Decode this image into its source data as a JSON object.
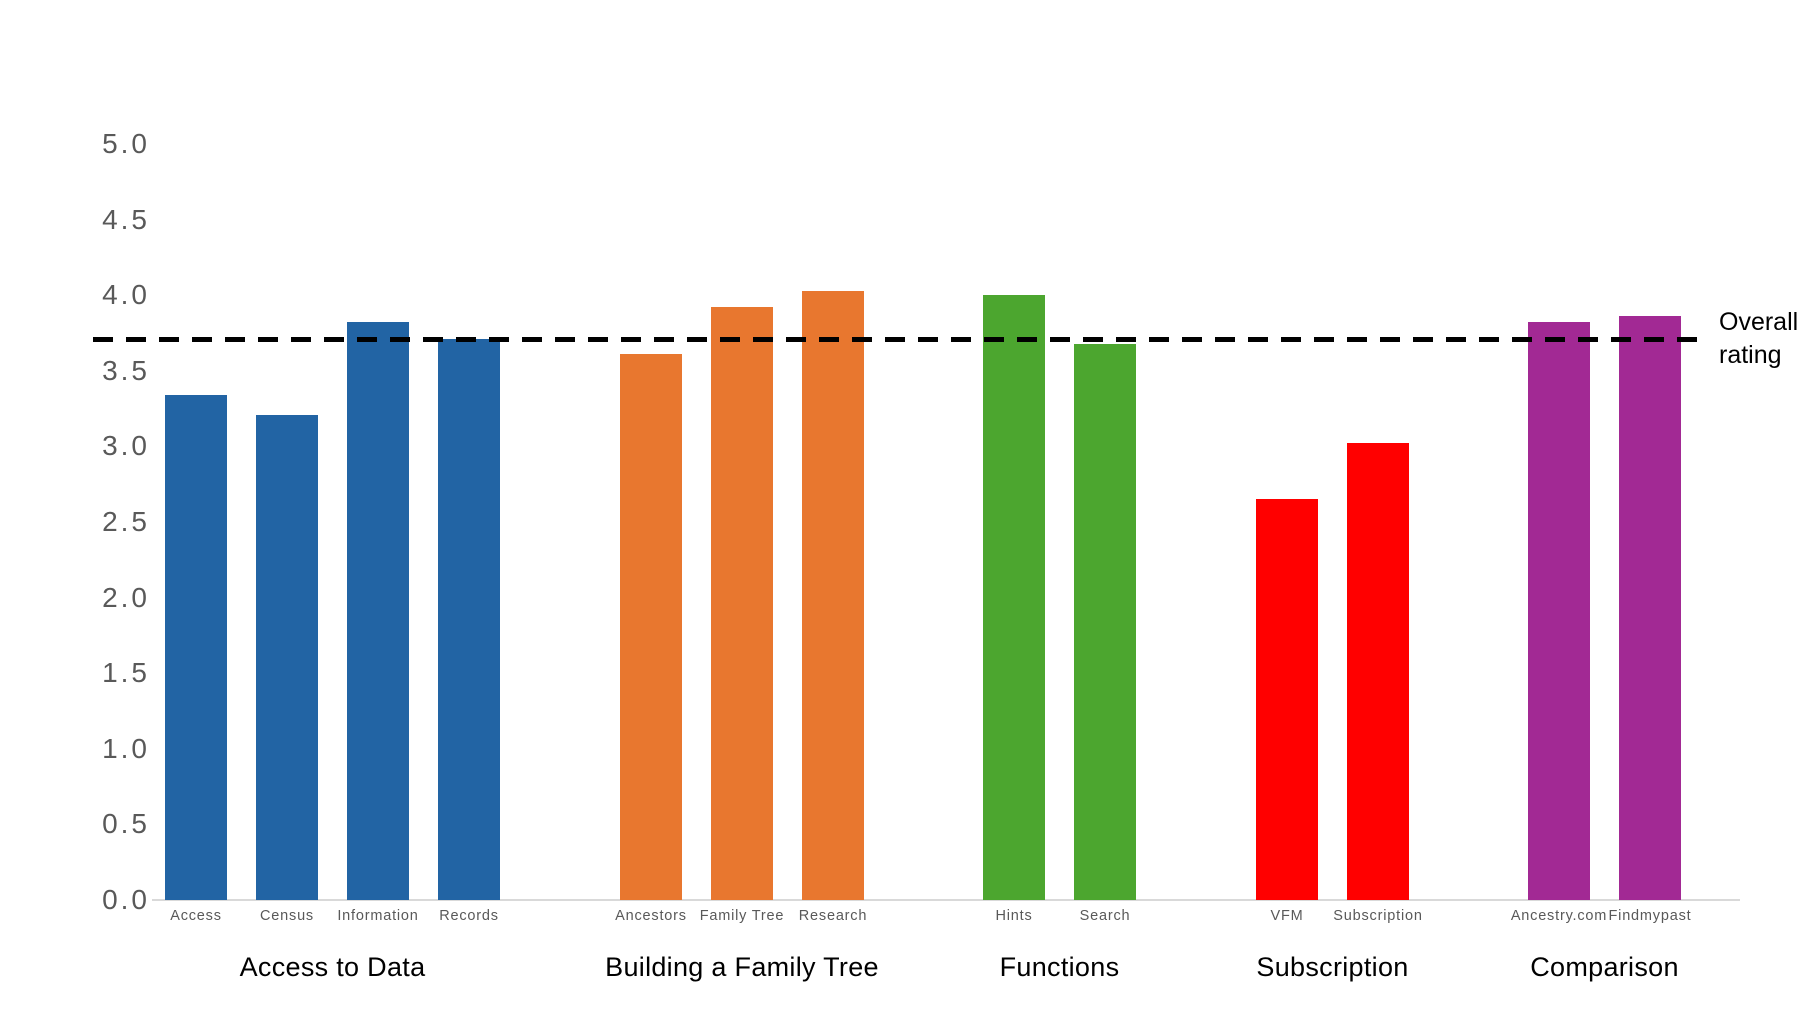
{
  "chart_data": {
    "type": "bar",
    "title": "",
    "xlabel": "",
    "ylabel": "",
    "ylim": [
      0,
      5
    ],
    "grid": false,
    "background": "#ffffff",
    "axis_line_color": "#d9d9d9",
    "tick_label_color": "#595959",
    "y_ticks": [
      "5.0",
      "4.5",
      "4.0",
      "3.5",
      "3.0",
      "2.5",
      "2.0",
      "1.5",
      "1.0",
      "0.5",
      "0.0"
    ],
    "reference_line": {
      "value": 3.71,
      "label": "Overall rating",
      "label_lines": [
        "Overall",
        "rating"
      ],
      "style": "dashed",
      "color": "#000000"
    },
    "groups": [
      {
        "title": "Access to Data",
        "color": "#2264A4",
        "bars": [
          {
            "label": "Access",
            "value": 3.34
          },
          {
            "label": "Census",
            "value": 3.21
          },
          {
            "label": "Information",
            "value": 3.82
          },
          {
            "label": "Records",
            "value": 3.71
          }
        ]
      },
      {
        "title": "Building a Family Tree",
        "color": "#E8772F",
        "bars": [
          {
            "label": "Ancestors",
            "value": 3.61
          },
          {
            "label": "Family Tree",
            "value": 3.92
          },
          {
            "label": "Research",
            "value": 4.03
          }
        ]
      },
      {
        "title": "Functions",
        "color": "#4CA62F",
        "bars": [
          {
            "label": "Hints",
            "value": 4.0
          },
          {
            "label": "Search",
            "value": 3.68
          }
        ]
      },
      {
        "title": "Subscription",
        "color": "#FF0000",
        "bars": [
          {
            "label": "VFM",
            "value": 2.65
          },
          {
            "label": "Subscription",
            "value": 3.02
          }
        ]
      },
      {
        "title": "Comparison",
        "color": "#A22994",
        "bars": [
          {
            "label": "Ancestry.com",
            "value": 3.82
          },
          {
            "label": "Findmypast",
            "value": 3.86
          }
        ]
      }
    ]
  }
}
